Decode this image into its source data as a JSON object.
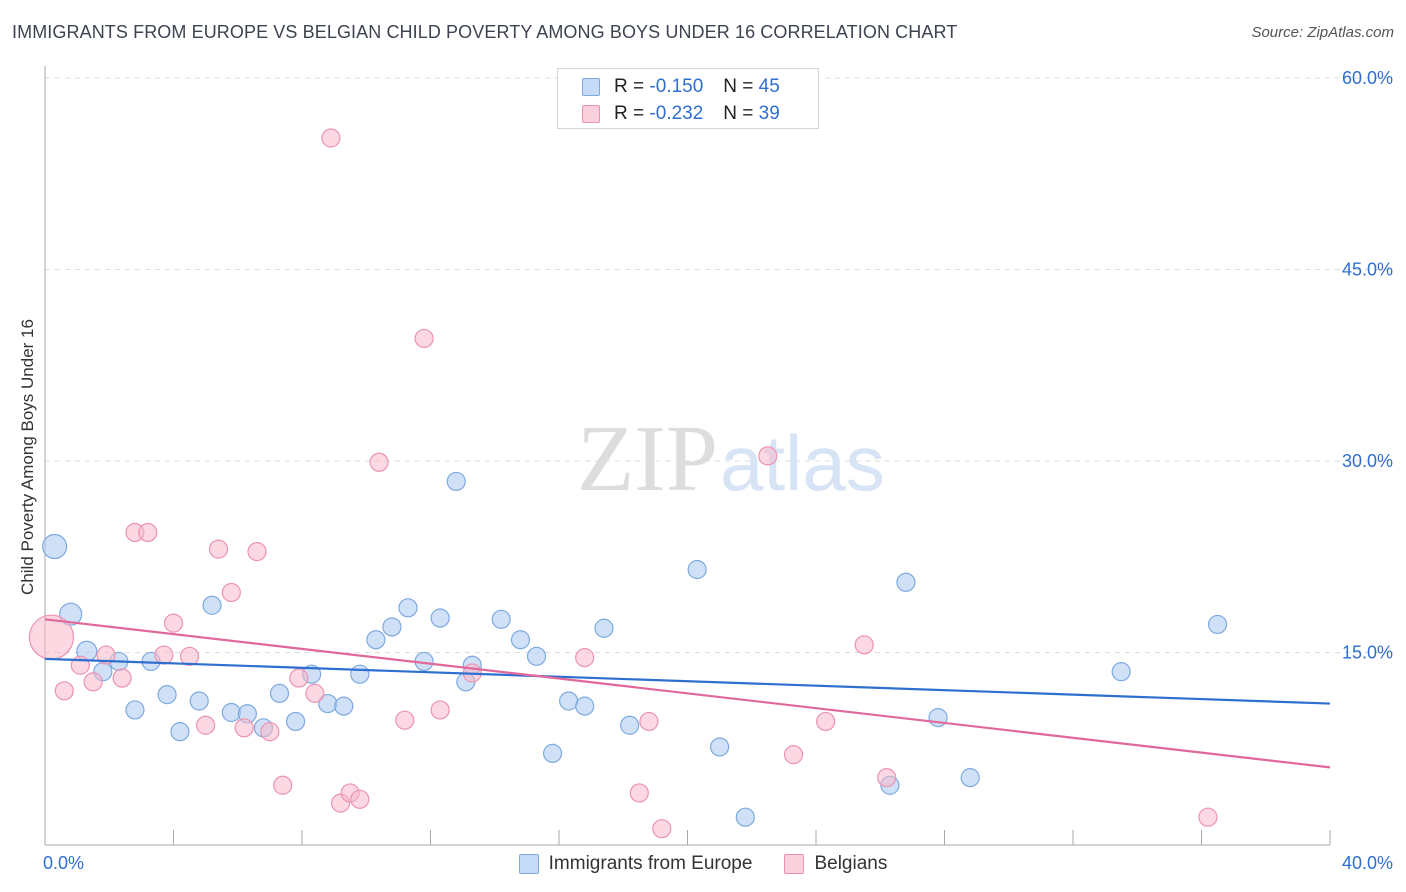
{
  "chart_data": {
    "type": "scatter",
    "title": "IMMIGRANTS FROM EUROPE VS BELGIAN CHILD POVERTY AMONG BOYS UNDER 16 CORRELATION CHART",
    "source": "Source: ZipAtlas.com",
    "xlabel": "",
    "ylabel": "Child Poverty Among Boys Under 16",
    "xlim": [
      0,
      40
    ],
    "ylim": [
      0,
      60
    ],
    "x_tick_labels": [
      "0.0%",
      "40.0%"
    ],
    "y_ticks": [
      15,
      30,
      45,
      60
    ],
    "y_tick_labels": [
      "15.0%",
      "30.0%",
      "45.0%",
      "60.0%"
    ],
    "grid": true,
    "watermark": "ZIPatlas",
    "legend_stats": [
      {
        "r_label": "R =",
        "r_value": "-0.150",
        "n_label": "N =",
        "n_value": "45"
      },
      {
        "r_label": "R =",
        "r_value": "-0.232",
        "n_label": "N =",
        "n_value": "39"
      }
    ],
    "series": [
      {
        "name": "Immigrants from Europe",
        "color": "#a9c8f0",
        "line_color": "#2e6fcf",
        "trend": [
          [
            0,
            14.5
          ],
          [
            40,
            11.0
          ]
        ],
        "points": [
          [
            0.3,
            23.3
          ],
          [
            0.8,
            18.0
          ],
          [
            1.3,
            15.1
          ],
          [
            1.8,
            13.5
          ],
          [
            2.3,
            14.3
          ],
          [
            2.8,
            10.5
          ],
          [
            3.3,
            14.3
          ],
          [
            3.8,
            11.7
          ],
          [
            4.2,
            8.8
          ],
          [
            4.8,
            11.2
          ],
          [
            5.2,
            18.7
          ],
          [
            5.8,
            10.3
          ],
          [
            6.3,
            10.2
          ],
          [
            6.8,
            9.1
          ],
          [
            7.3,
            11.8
          ],
          [
            7.8,
            9.6
          ],
          [
            8.3,
            13.3
          ],
          [
            8.8,
            11.0
          ],
          [
            9.3,
            10.8
          ],
          [
            9.8,
            13.3
          ],
          [
            10.3,
            16.0
          ],
          [
            10.8,
            17.0
          ],
          [
            11.3,
            18.5
          ],
          [
            11.8,
            14.3
          ],
          [
            12.3,
            17.7
          ],
          [
            12.8,
            28.4
          ],
          [
            13.1,
            12.7
          ],
          [
            13.3,
            14.0
          ],
          [
            14.2,
            17.6
          ],
          [
            14.8,
            16.0
          ],
          [
            15.3,
            14.7
          ],
          [
            15.8,
            7.1
          ],
          [
            16.3,
            11.2
          ],
          [
            16.8,
            10.8
          ],
          [
            17.4,
            16.9
          ],
          [
            18.2,
            9.3
          ],
          [
            20.3,
            21.5
          ],
          [
            21.0,
            7.6
          ],
          [
            21.8,
            2.1
          ],
          [
            26.8,
            20.5
          ],
          [
            26.3,
            4.6
          ],
          [
            27.8,
            9.9
          ],
          [
            28.8,
            5.2
          ],
          [
            33.5,
            13.5
          ],
          [
            36.5,
            17.2
          ]
        ],
        "sizes": [
          12,
          11,
          10,
          9,
          9,
          9,
          9,
          9,
          9,
          9,
          9,
          9,
          9,
          9,
          9,
          9,
          9,
          9,
          9,
          9,
          9,
          9,
          9,
          9,
          9,
          9,
          9,
          9,
          9,
          9,
          9,
          9,
          9,
          9,
          9,
          9,
          9,
          9,
          9,
          9,
          9,
          9,
          9,
          9,
          9
        ]
      },
      {
        "name": "Belgians",
        "color": "#f7b8cb",
        "line_color": "#e0689a",
        "trend": [
          [
            0,
            17.6
          ],
          [
            40,
            6.0
          ]
        ],
        "points": [
          [
            0.2,
            16.2
          ],
          [
            0.6,
            12.0
          ],
          [
            1.1,
            14.0
          ],
          [
            1.5,
            12.7
          ],
          [
            1.9,
            14.8
          ],
          [
            2.4,
            13.0
          ],
          [
            2.8,
            24.4
          ],
          [
            3.2,
            24.4
          ],
          [
            3.7,
            14.8
          ],
          [
            4.0,
            17.3
          ],
          [
            4.5,
            14.7
          ],
          [
            5.0,
            9.3
          ],
          [
            5.4,
            23.1
          ],
          [
            5.8,
            19.7
          ],
          [
            6.2,
            9.1
          ],
          [
            6.6,
            22.9
          ],
          [
            7.0,
            8.8
          ],
          [
            7.4,
            4.6
          ],
          [
            7.9,
            13.0
          ],
          [
            8.4,
            11.8
          ],
          [
            8.9,
            55.3
          ],
          [
            9.2,
            3.2
          ],
          [
            9.5,
            4.0
          ],
          [
            9.8,
            3.5
          ],
          [
            10.4,
            29.9
          ],
          [
            11.2,
            9.7
          ],
          [
            11.8,
            39.6
          ],
          [
            12.3,
            10.5
          ],
          [
            13.3,
            13.4
          ],
          [
            16.8,
            14.6
          ],
          [
            18.5,
            4.0
          ],
          [
            18.8,
            9.6
          ],
          [
            19.2,
            1.2
          ],
          [
            22.5,
            30.4
          ],
          [
            23.3,
            7.0
          ],
          [
            24.3,
            9.6
          ],
          [
            25.5,
            15.6
          ],
          [
            26.2,
            5.2
          ],
          [
            36.2,
            2.1
          ]
        ],
        "sizes": [
          22,
          9,
          9,
          9,
          9,
          9,
          9,
          9,
          9,
          9,
          9,
          9,
          9,
          9,
          9,
          9,
          9,
          9,
          9,
          9,
          9,
          9,
          9,
          9,
          9,
          9,
          9,
          9,
          9,
          9,
          9,
          9,
          9,
          9,
          9,
          9,
          9,
          9,
          9
        ]
      }
    ]
  }
}
